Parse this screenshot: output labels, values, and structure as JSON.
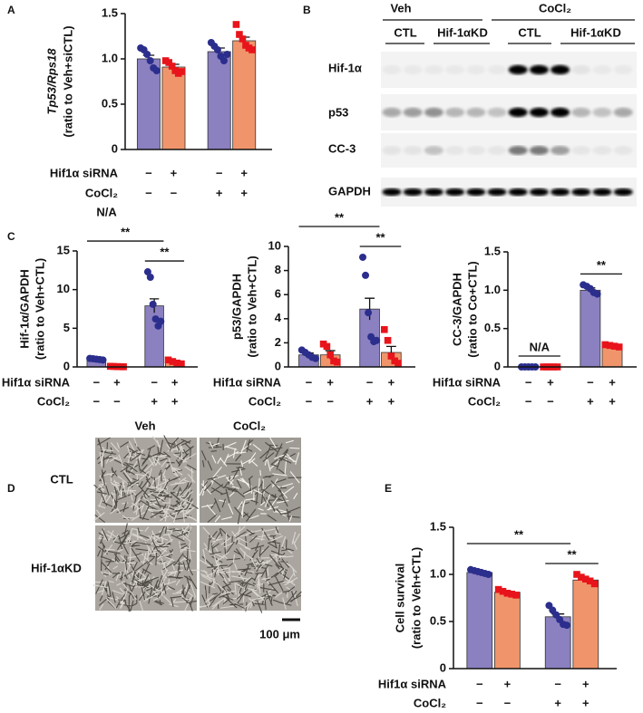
{
  "chart_data": [
    {
      "type": "bar",
      "panel": "A",
      "ylabel": [
        "Tp53/Rps18",
        "(ratio to Veh+siCTL)"
      ],
      "ylabel_italic": [
        true,
        false
      ],
      "ylim": [
        0,
        1.5
      ],
      "yticks": [
        0,
        {
          "value": 0.5,
          "label": "0.5"
        },
        {
          "value": 1,
          "label": "1.0"
        },
        {
          "value": 1.5,
          "label": "1.5"
        }
      ],
      "values": [
        1.0,
        0.91,
        1.08,
        1.2
      ],
      "errors": [
        0.04,
        0.03,
        0.04,
        0.04
      ],
      "points": [
        [
          1.12,
          1.1,
          1.05,
          0.98,
          0.9,
          0.87
        ],
        [
          0.98,
          0.96,
          0.92,
          0.87,
          0.84,
          0.86
        ],
        [
          1.18,
          1.14,
          1.1,
          1.03,
          0.98,
          1.05
        ],
        [
          1.38,
          1.27,
          1.22,
          1.15,
          1.12,
          1.1
        ]
      ],
      "bar_colors": [
        "#8b80c0",
        "#f0956b",
        "#8b80c0",
        "#f0956b"
      ],
      "point_colors": [
        "#2b2e8c",
        "#e8141b",
        "#2b2e8c",
        "#e8141b"
      ],
      "point_shapes": [
        "circle",
        "square",
        "circle",
        "square"
      ],
      "conditions": [
        {
          "name": "Hif1α siRNA",
          "marks": [
            "−",
            "+",
            "−",
            "+"
          ]
        },
        {
          "name": "CoCl₂",
          "marks": [
            "−",
            "−",
            "+",
            "+"
          ]
        }
      ],
      "annotations": []
    },
    {
      "type": "bar",
      "panel": "C",
      "ylabel": [
        "Hif-1α/GAPDH",
        "(ratio to Veh+CTL)"
      ],
      "ylabel_italic": [
        false,
        false
      ],
      "ylim": [
        0,
        15
      ],
      "yticks": [
        0,
        5,
        10,
        15
      ],
      "values": [
        1.0,
        0.05,
        7.9,
        0.6
      ],
      "errors": [
        0.05,
        0.02,
        0.9,
        0.15
      ],
      "points": [
        [
          1.1,
          1.05,
          1.0,
          0.95,
          0.9
        ],
        [
          0.08,
          0.06,
          0.04,
          0.03,
          0.02
        ],
        [
          12.3,
          11.6,
          8.1,
          6.2,
          5.3,
          5.9
        ],
        [
          0.9,
          0.7,
          0.5,
          0.4
        ]
      ],
      "bar_colors": [
        "#8b80c0",
        "#f0956b",
        "#8b80c0",
        "#f0956b"
      ],
      "point_colors": [
        "#2b2e8c",
        "#e8141b",
        "#2b2e8c",
        "#e8141b"
      ],
      "point_shapes": [
        "circle",
        "square",
        "circle",
        "square"
      ],
      "conditions": [
        {
          "name": "Hif1α siRNA",
          "marks": [
            "−",
            "+",
            "−",
            "+"
          ]
        },
        {
          "name": "CoCl₂",
          "marks": [
            "−",
            "−",
            "+",
            "+"
          ]
        }
      ],
      "annotations": [
        {
          "text": "**",
          "span": [
            2,
            3
          ],
          "line": true
        },
        {
          "text": "**",
          "span": [
            0,
            2
          ],
          "line": true
        },
        {
          "text": "N/A",
          "span": [
            0,
            1
          ],
          "line": false
        }
      ]
    },
    {
      "type": "bar",
      "ylabel": [
        "p53/GAPDH",
        "(ratio to Veh+CTL)"
      ],
      "ylabel_italic": [
        false,
        false
      ],
      "ylim": [
        0,
        10
      ],
      "yticks": [
        0,
        2,
        4,
        6,
        8,
        10
      ],
      "values": [
        1.0,
        1.0,
        4.8,
        1.2
      ],
      "errors": [
        0.15,
        0.35,
        0.9,
        0.5
      ],
      "points": [
        [
          1.4,
          1.2,
          1.0,
          0.8,
          0.7
        ],
        [
          1.9,
          1.7,
          1.0,
          0.5,
          0.4
        ],
        [
          9.1,
          7.6,
          4.5,
          2.5,
          2.1,
          2.2
        ],
        [
          3.1,
          2.2,
          0.9,
          0.5,
          0.3
        ]
      ],
      "bar_colors": [
        "#8b80c0",
        "#f0956b",
        "#8b80c0",
        "#f0956b"
      ],
      "point_colors": [
        "#2b2e8c",
        "#e8141b",
        "#2b2e8c",
        "#e8141b"
      ],
      "point_shapes": [
        "circle",
        "square",
        "circle",
        "square"
      ],
      "conditions": [
        {
          "name": "Hif1α siRNA",
          "marks": [
            "−",
            "+",
            "−",
            "+"
          ]
        },
        {
          "name": "CoCl₂",
          "marks": [
            "−",
            "−",
            "+",
            "+"
          ]
        }
      ],
      "annotations": [
        {
          "text": "**",
          "span": [
            2,
            3
          ],
          "line": true
        },
        {
          "text": "**",
          "span": [
            0,
            2
          ],
          "line": true
        }
      ]
    },
    {
      "type": "bar",
      "ylabel": [
        "CC-3/GAPDH",
        "(ratio to Co+CTL)"
      ],
      "ylabel_italic": [
        false,
        false
      ],
      "ylim": [
        0,
        1.5
      ],
      "yticks": [
        0,
        {
          "value": 0.5,
          "label": "0.5"
        },
        {
          "value": 1,
          "label": "1.0"
        },
        {
          "value": 1.5,
          "label": "1.5"
        }
      ],
      "values": [
        0,
        0,
        1.0,
        0.27
      ],
      "errors": [
        0,
        0,
        0.03,
        0.01
      ],
      "points": [
        [
          0,
          0,
          0,
          0,
          0
        ],
        [
          0,
          0,
          0,
          0,
          0
        ],
        [
          1.07,
          1.05,
          1.02,
          0.97,
          0.95
        ],
        [
          0.29,
          0.28,
          0.27,
          0.26
        ]
      ],
      "bar_colors": [
        "#8b80c0",
        "#f0956b",
        "#8b80c0",
        "#f0956b"
      ],
      "point_colors": [
        "#2b2e8c",
        "#e8141b",
        "#2b2e8c",
        "#e8141b"
      ],
      "point_shapes": [
        "circle",
        "square",
        "circle",
        "square"
      ],
      "conditions": [
        {
          "name": "Hif1α siRNA",
          "marks": [
            "−",
            "+",
            "−",
            "+"
          ]
        },
        {
          "name": "CoCl₂",
          "marks": [
            "−",
            "−",
            "+",
            "+"
          ]
        }
      ],
      "annotations": [
        {
          "text": "**",
          "span": [
            2,
            3
          ],
          "line": true
        },
        {
          "text": "N/A",
          "span": [
            0,
            1
          ],
          "line": true
        }
      ]
    },
    {
      "type": "bar",
      "panel": "E",
      "ylabel": [
        "Cell survival",
        "(ratio to Veh+CTL)"
      ],
      "ylabel_italic": [
        false,
        false
      ],
      "ylim": [
        0,
        1.5
      ],
      "yticks": [
        0,
        {
          "value": 0.5,
          "label": "0.5"
        },
        {
          "value": 1,
          "label": "1.0"
        },
        {
          "value": 1.5,
          "label": "1.5"
        }
      ],
      "values": [
        1.02,
        0.81,
        0.55,
        0.94
      ],
      "errors": [
        0.01,
        0.01,
        0.03,
        0.02
      ],
      "points": [
        [
          1.05,
          1.04,
          1.03,
          1.02,
          1.01,
          1.0
        ],
        [
          0.84,
          0.82,
          0.8,
          0.79,
          0.78
        ],
        [
          0.67,
          0.62,
          0.57,
          0.52,
          0.47,
          0.46
        ],
        [
          1.0,
          0.97,
          0.95,
          0.93,
          0.9
        ]
      ],
      "bar_colors": [
        "#8b80c0",
        "#f0956b",
        "#8b80c0",
        "#f0956b"
      ],
      "point_colors": [
        "#2b2e8c",
        "#e8141b",
        "#2b2e8c",
        "#e8141b"
      ],
      "point_shapes": [
        "circle",
        "square",
        "circle",
        "square"
      ],
      "conditions": [
        {
          "name": "Hif1α siRNA",
          "marks": [
            "−",
            "+",
            "−",
            "+"
          ]
        },
        {
          "name": "CoCl₂",
          "marks": [
            "−",
            "−",
            "+",
            "+"
          ]
        }
      ],
      "annotations": [
        {
          "text": "**",
          "span": [
            2,
            3
          ],
          "line": true
        },
        {
          "text": "**",
          "span": [
            0,
            2
          ],
          "line": true
        }
      ]
    }
  ],
  "blot": {
    "panel": "B",
    "groups": [
      "Veh",
      "CoCl₂"
    ],
    "lanes": [
      "CTL",
      "Hif-1αKD",
      "CTL",
      "Hif-1αKD"
    ],
    "rows": [
      "Hif-1α",
      "p53",
      "CC-3",
      "GAPDH"
    ]
  },
  "micrographs": {
    "panel": "D",
    "columns": [
      "Veh",
      "CoCl₂"
    ],
    "rows": [
      "CTL",
      "Hif-1αKD"
    ],
    "scale_bar": "100 μm"
  }
}
